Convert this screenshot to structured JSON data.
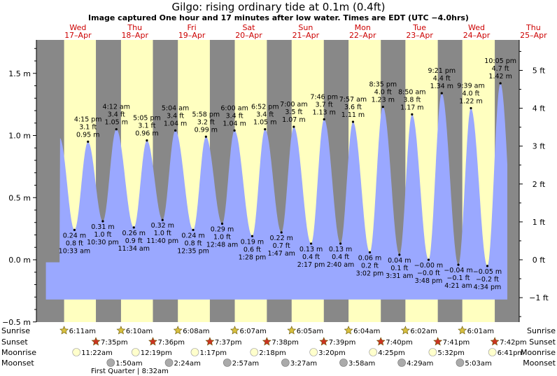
{
  "title": "Gilgo: rising  ordinary tide at 0.1m (0.4ft)",
  "subtitle": "Image captured One hour and 17 minutes after low water. Times are EDT (UTC −4.0hrs)",
  "chart_data": {
    "type": "area",
    "days": [
      {
        "dow": "Wed",
        "date": "17–Apr"
      },
      {
        "dow": "Thu",
        "date": "18–Apr"
      },
      {
        "dow": "Fri",
        "date": "19–Apr"
      },
      {
        "dow": "Sat",
        "date": "20–Apr"
      },
      {
        "dow": "Sun",
        "date": "21–Apr"
      },
      {
        "dow": "Mon",
        "date": "22–Apr"
      },
      {
        "dow": "Tue",
        "date": "23–Apr"
      },
      {
        "dow": "Wed",
        "date": "24–Apr"
      },
      {
        "dow": "Thu",
        "date": "25–Apr"
      }
    ],
    "left_axis": {
      "unit": "m",
      "range": [
        -0.5,
        1.75
      ],
      "ticks": [
        {
          "v": -0.5,
          "label": "−0.5 m"
        },
        {
          "v": 0.0,
          "label": "0.0 m"
        },
        {
          "v": 0.5,
          "label": "0.5 m"
        },
        {
          "v": 1.0,
          "label": "1.0 m"
        },
        {
          "v": 1.5,
          "label": "1.5 m"
        }
      ]
    },
    "right_axis": {
      "unit": "ft",
      "ticks": [
        {
          "v": -1,
          "label": "−1 ft"
        },
        {
          "v": 0,
          "label": "0 ft"
        },
        {
          "v": 1,
          "label": "1 ft"
        },
        {
          "v": 2,
          "label": "2 ft"
        },
        {
          "v": 3,
          "label": "3 ft"
        },
        {
          "v": 4,
          "label": "4 ft"
        },
        {
          "v": 5,
          "label": "5 ft"
        }
      ]
    },
    "highs": [
      {
        "t": 16.25,
        "m": 0.95,
        "time": "4:15 pm",
        "ft": "3.1 ft",
        "mlab": "0.95 m"
      },
      {
        "t": 28.2,
        "m": 1.05,
        "time": "4:12 am",
        "ft": "3.4 ft",
        "mlab": "1.05 m"
      },
      {
        "t": 41.08,
        "m": 0.96,
        "time": "5:05 pm",
        "ft": "3.1 ft",
        "mlab": "0.96 m"
      },
      {
        "t": 53.07,
        "m": 1.04,
        "time": "5:04 am",
        "ft": "3.4 ft",
        "mlab": "1.04 m"
      },
      {
        "t": 65.97,
        "m": 0.99,
        "time": "5:58 pm",
        "ft": "3.2 ft",
        "mlab": "0.99 m"
      },
      {
        "t": 78.0,
        "m": 1.04,
        "time": "6:00 am",
        "ft": "3.4 ft",
        "mlab": "1.04 m"
      },
      {
        "t": 90.87,
        "m": 1.05,
        "time": "6:52 pm",
        "ft": "3.4 ft",
        "mlab": "1.05 m"
      },
      {
        "t": 103.0,
        "m": 1.07,
        "time": "7:00 am",
        "ft": "3.5 ft",
        "mlab": "1.07 m"
      },
      {
        "t": 115.77,
        "m": 1.13,
        "time": "7:46 pm",
        "ft": "3.7 ft",
        "mlab": "1.13 m"
      },
      {
        "t": 127.95,
        "m": 1.11,
        "time": "7:57 am",
        "ft": "3.6 ft",
        "mlab": "1.11 m"
      },
      {
        "t": 140.58,
        "m": 1.23,
        "time": "8:35 pm",
        "ft": "4.0 ft",
        "mlab": "1.23 m"
      },
      {
        "t": 152.83,
        "m": 1.17,
        "time": "8:50 am",
        "ft": "3.8 ft",
        "mlab": "1.17 m"
      },
      {
        "t": 165.35,
        "m": 1.34,
        "time": "9:21 pm",
        "ft": "4.4 ft",
        "mlab": "1.34 m"
      },
      {
        "t": 177.65,
        "m": 1.22,
        "time": "9:39 am",
        "ft": "4.0 ft",
        "mlab": "1.22 m"
      },
      {
        "t": 190.08,
        "m": 1.42,
        "time": "10:05 pm",
        "ft": "4.7 ft",
        "mlab": "1.42 m"
      }
    ],
    "lows": [
      {
        "t": 10.55,
        "m": 0.24,
        "time": "10:33 am",
        "ft": "0.8 ft",
        "mlab": "0.24 m"
      },
      {
        "t": 22.5,
        "m": 0.31,
        "time": "10:30 pm",
        "ft": "1.0 ft",
        "mlab": "0.31 m"
      },
      {
        "t": 35.57,
        "m": 0.26,
        "time": "11:34 am",
        "ft": "0.9 ft",
        "mlab": "0.26 m"
      },
      {
        "t": 47.67,
        "m": 0.32,
        "time": "11:40 pm",
        "ft": "1.0 ft",
        "mlab": "0.32 m"
      },
      {
        "t": 60.58,
        "m": 0.24,
        "time": "12:35 pm",
        "ft": "0.8 ft",
        "mlab": "0.24 m"
      },
      {
        "t": 72.8,
        "m": 0.29,
        "time": "12:48 am",
        "ft": "1.0 ft",
        "mlab": "0.29 m"
      },
      {
        "t": 85.47,
        "m": 0.19,
        "time": "1:28 pm",
        "ft": "0.6 ft",
        "mlab": "0.19 m"
      },
      {
        "t": 97.78,
        "m": 0.22,
        "time": "1:47 am",
        "ft": "0.7 ft",
        "mlab": "0.22 m"
      },
      {
        "t": 110.28,
        "m": 0.13,
        "time": "2:17 pm",
        "ft": "0.4 ft",
        "mlab": "0.13 m"
      },
      {
        "t": 122.67,
        "m": 0.13,
        "time": "2:40 am",
        "ft": "0.4 ft",
        "mlab": "0.13 m"
      },
      {
        "t": 135.03,
        "m": 0.06,
        "time": "3:02 pm",
        "ft": "0.2 ft",
        "mlab": "0.06 m"
      },
      {
        "t": 147.52,
        "m": 0.04,
        "time": "3:31 am",
        "ft": "0.1 ft",
        "mlab": "0.04 m"
      },
      {
        "t": 159.8,
        "m": 0.0,
        "time": "3:48 pm",
        "ft": "−0.0 ft",
        "mlab": "−0.00 m"
      },
      {
        "t": 172.35,
        "m": -0.04,
        "time": "4:21 am",
        "ft": "−0.1 ft",
        "mlab": "−0.04 m"
      },
      {
        "t": 184.57,
        "m": -0.05,
        "time": "4:34 pm",
        "ft": "−0.2 ft",
        "mlab": "−0.05 m"
      }
    ],
    "sunrise": [
      "6:11am",
      "6:10am",
      "6:08am",
      "6:07am",
      "6:05am",
      "6:04am",
      "6:02am",
      "6:01am"
    ],
    "sunset": [
      "7:35pm",
      "7:36pm",
      "7:37pm",
      "7:38pm",
      "7:39pm",
      "7:40pm",
      "7:41pm",
      "7:42pm"
    ],
    "moonrise": [
      "11:22am",
      "12:19pm",
      "1:17pm",
      "2:18pm",
      "3:20pm",
      "4:25pm",
      "5:32pm",
      "6:41pm"
    ],
    "moonset": [
      "1:50am",
      "2:24am",
      "2:57am",
      "3:27am",
      "3:58am",
      "4:29am",
      "5:03am"
    ],
    "moon_phase": "First Quarter | 8:32am",
    "row_labels": {
      "sunrise": "Sunrise",
      "sunset": "Sunset",
      "moonrise": "Moonrise",
      "moonset": "Moonset"
    },
    "colors": {
      "night": "#888888",
      "day": "#ffffc0",
      "water": "#9aa8ff",
      "day_label": "#cc0000",
      "star_rise": "#d8c040",
      "star_set": "#cc3322",
      "moon_rise": "#ffffcc",
      "moon_set": "#aaaaaa"
    }
  }
}
